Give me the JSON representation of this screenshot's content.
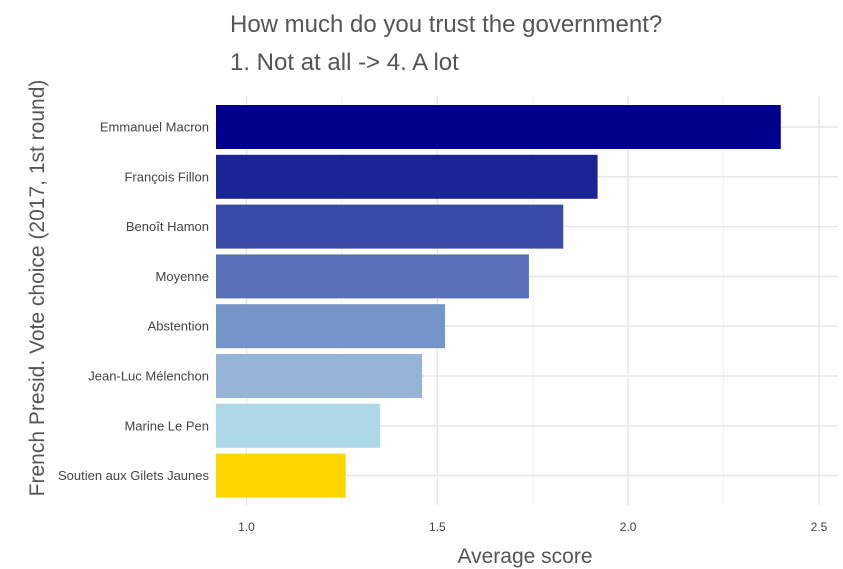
{
  "chart_data": {
    "type": "bar",
    "orientation": "horizontal",
    "title": [
      "How much do you trust the government?",
      "1. Not at all -> 4. A lot"
    ],
    "xlabel": "Average score",
    "ylabel": "French Presid. Vote choice (2017, 1st round)",
    "xlim": [
      0.92,
      2.55
    ],
    "x_ticks": [
      "1.0",
      "1.5",
      "2.0",
      "2.5"
    ],
    "grid": true,
    "categories": [
      "Emmanuel Macron",
      "François Fillon",
      "Benoît Hamon",
      "Moyenne",
      "Abstention",
      "Jean-Luc Mélenchon",
      "Marine Le Pen",
      "Soutien aux Gilets Jaunes"
    ],
    "values": [
      2.4,
      1.92,
      1.83,
      1.74,
      1.52,
      1.46,
      1.35,
      1.26
    ],
    "colors": [
      "#00008b",
      "#1a2494",
      "#3a4aa8",
      "#5a70b8",
      "#7594c8",
      "#95b4d8",
      "#add8e6",
      "#ffd700"
    ]
  }
}
